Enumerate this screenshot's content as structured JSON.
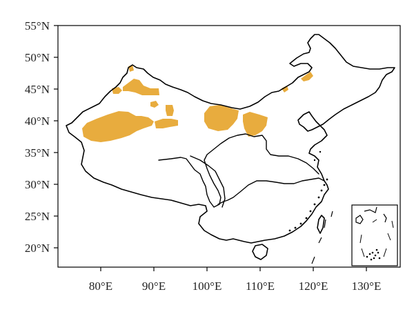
{
  "map": {
    "x_axis": {
      "ticks": [
        "80°E",
        "90°E",
        "100°E",
        "110°E",
        "120°E",
        "130°E"
      ]
    },
    "y_axis": {
      "ticks": [
        "55°N",
        "50°N",
        "45°N",
        "40°N",
        "35°N",
        "30°N",
        "25°N",
        "20°N"
      ]
    },
    "colors": {
      "highlight": "#E8AC3E",
      "outline": "#000000",
      "background": "#FFFFFF"
    },
    "has_inset": true
  }
}
